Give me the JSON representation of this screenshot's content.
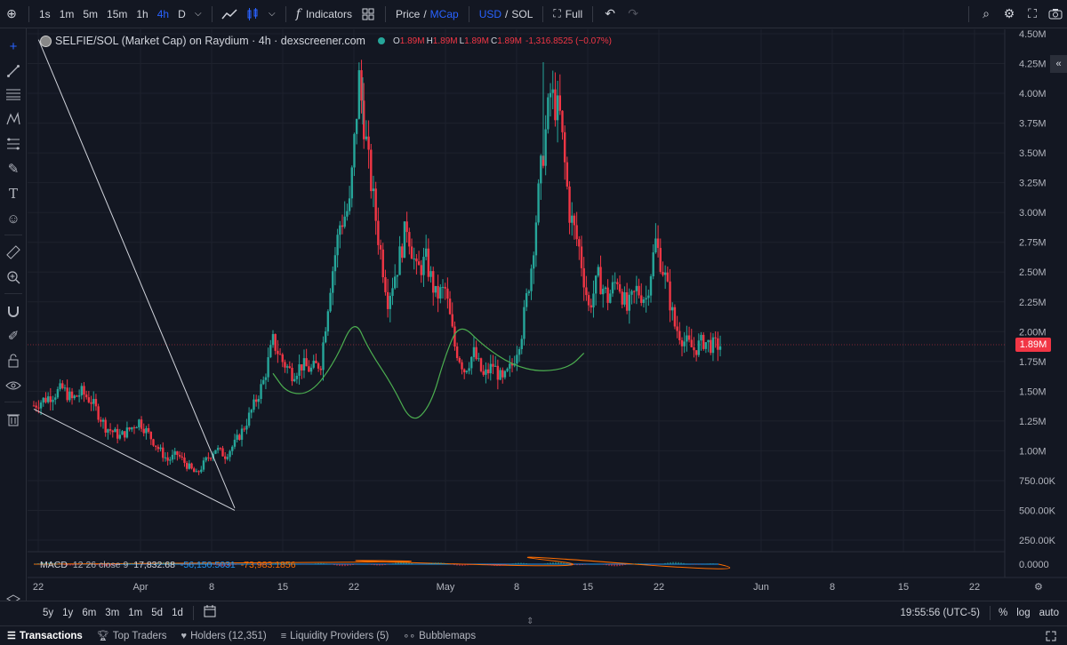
{
  "toolbar": {
    "intervals": [
      "1s",
      "1m",
      "5m",
      "15m",
      "1h",
      "4h",
      "D"
    ],
    "active_interval": "4h",
    "indicators_label": "Indicators",
    "price_label": "Price",
    "mcap_label": "MCap",
    "usd_label": "USD",
    "sol_label": "SOL",
    "slash": "/",
    "full_label": "Full"
  },
  "legend": {
    "title": "SELFIE/SOL (Market Cap) on Raydium · 4h · dexscreener.com",
    "o_key": "O",
    "o_val": "1.89M",
    "h_key": "H",
    "h_val": "1.89M",
    "l_key": "L",
    "l_val": "1.89M",
    "c_key": "C",
    "c_val": "1.89M",
    "change": "-1,316.8525 (−0.07%)"
  },
  "macd": {
    "name": "MACD",
    "params": "12 26 close 9",
    "v1": "17,832.68",
    "v2": "-56,150.5031",
    "v3": "-73,983.1856"
  },
  "price_axis": [
    "4.50M",
    "4.25M",
    "4.00M",
    "3.75M",
    "3.50M",
    "3.25M",
    "3.00M",
    "2.75M",
    "2.50M",
    "2.25M",
    "2.00M",
    "1.75M",
    "1.50M",
    "1.25M",
    "1.00M",
    "750.00K",
    "500.00K",
    "250.00K"
  ],
  "macd_axis": "0.0000",
  "current_price": "1.89M",
  "time_axis": [
    "22",
    "Apr",
    "8",
    "15",
    "22",
    "May",
    "8",
    "15",
    "22",
    "Jun",
    "8",
    "15",
    "22"
  ],
  "ranges": [
    "5y",
    "1y",
    "6m",
    "3m",
    "1m",
    "5d",
    "1d"
  ],
  "clock": "19:55:56 (UTC-5)",
  "pct_label": "%",
  "log_label": "log",
  "auto_label": "auto",
  "tabs": [
    {
      "label": "Transactions",
      "icon": "list-icon"
    },
    {
      "label": "Top Traders",
      "icon": "trophy-icon"
    },
    {
      "label": "Holders (12,351)",
      "icon": "heart-icon"
    },
    {
      "label": "Liquidity Providers (5)",
      "icon": "layers-icon"
    },
    {
      "label": "Bubblemaps",
      "icon": "bubbles-icon"
    }
  ],
  "colors": {
    "up": "#26a69a",
    "down": "#f23645",
    "background": "#131722",
    "accent": "#2962ff",
    "curve": "#4caf50"
  },
  "chart_data": {
    "type": "candlestick",
    "x_range": [
      "Mar 22",
      "Jun 22"
    ],
    "y_range": [
      0,
      4.5
    ],
    "y_unit": "M",
    "close_path": [
      [
        0,
        1.38
      ],
      [
        3,
        1.45
      ],
      [
        6,
        1.52
      ],
      [
        8,
        1.43
      ],
      [
        10,
        1.49
      ],
      [
        12,
        1.42
      ],
      [
        15,
        1.2
      ],
      [
        18,
        1.12
      ],
      [
        20,
        1.18
      ],
      [
        22,
        1.25
      ],
      [
        24,
        1.14
      ],
      [
        26,
        1.02
      ],
      [
        28,
        0.92
      ],
      [
        30,
        0.97
      ],
      [
        32,
        0.88
      ],
      [
        34,
        0.8
      ],
      [
        36,
        0.92
      ],
      [
        38,
        1.02
      ],
      [
        40,
        0.96
      ],
      [
        42,
        1.06
      ],
      [
        44,
        1.2
      ],
      [
        46,
        1.38
      ],
      [
        48,
        1.58
      ],
      [
        50,
        1.92
      ],
      [
        52,
        1.75
      ],
      [
        54,
        1.65
      ],
      [
        56,
        1.72
      ],
      [
        58,
        1.68
      ],
      [
        60,
        1.74
      ],
      [
        62,
        2.4
      ],
      [
        64,
        2.9
      ],
      [
        66,
        3.05
      ],
      [
        68,
        4.12
      ],
      [
        70,
        3.4
      ],
      [
        72,
        2.8
      ],
      [
        74,
        2.28
      ],
      [
        76,
        2.55
      ],
      [
        78,
        2.9
      ],
      [
        80,
        2.5
      ],
      [
        82,
        2.6
      ],
      [
        84,
        2.3
      ],
      [
        86,
        2.35
      ],
      [
        88,
        1.88
      ],
      [
        90,
        1.68
      ],
      [
        92,
        1.82
      ],
      [
        94,
        1.62
      ],
      [
        96,
        1.72
      ],
      [
        98,
        1.58
      ],
      [
        100,
        1.72
      ],
      [
        102,
        2.0
      ],
      [
        104,
        2.55
      ],
      [
        106,
        3.35
      ],
      [
        108,
        4.0
      ],
      [
        110,
        3.8
      ],
      [
        112,
        3.0
      ],
      [
        114,
        2.7
      ],
      [
        116,
        2.2
      ],
      [
        118,
        2.45
      ],
      [
        120,
        2.28
      ],
      [
        122,
        2.45
      ],
      [
        124,
        2.18
      ],
      [
        126,
        2.35
      ],
      [
        128,
        2.28
      ],
      [
        130,
        2.75
      ],
      [
        132,
        2.45
      ],
      [
        134,
        2.05
      ],
      [
        136,
        1.92
      ],
      [
        138,
        1.85
      ],
      [
        140,
        1.92
      ],
      [
        142,
        1.88
      ],
      [
        144,
        1.89
      ]
    ],
    "curve": [
      [
        50,
        1.65
      ],
      [
        53,
        1.48
      ],
      [
        58,
        1.48
      ],
      [
        63,
        1.75
      ],
      [
        67,
        2.12
      ],
      [
        70,
        1.85
      ],
      [
        75,
        1.55
      ],
      [
        79,
        1.22
      ],
      [
        83,
        1.38
      ],
      [
        86,
        1.8
      ],
      [
        89,
        2.08
      ],
      [
        94,
        1.88
      ],
      [
        100,
        1.72
      ],
      [
        106,
        1.66
      ],
      [
        112,
        1.7
      ],
      [
        115,
        1.82
      ]
    ],
    "trend_lines": [
      {
        "from": [
          0,
          1.35
        ],
        "to": [
          42,
          0.5
        ]
      },
      {
        "from": [
          1,
          4.45
        ],
        "to": [
          42,
          0.52
        ]
      }
    ]
  }
}
